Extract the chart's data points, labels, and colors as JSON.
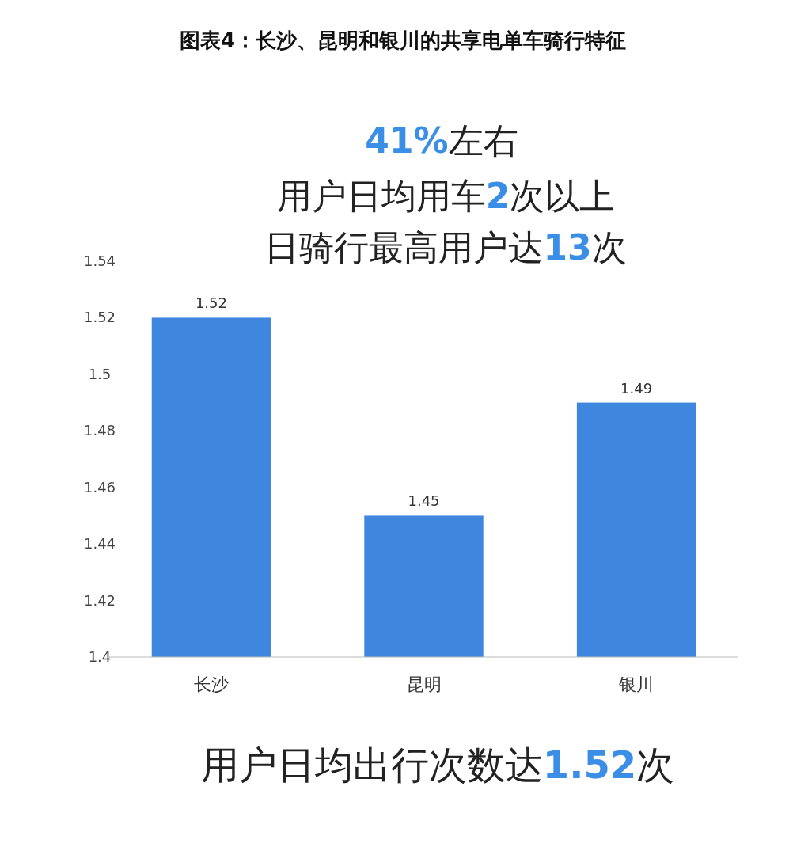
{
  "chart_data": {
    "type": "bar",
    "title": "图表4：长沙、昆明和银川的共享电单车骑行特征",
    "categories": [
      "长沙",
      "昆明",
      "银川"
    ],
    "values": [
      1.52,
      1.45,
      1.49
    ],
    "color": "#3f86de",
    "ylim": [
      1.4,
      1.54
    ],
    "yticks": [
      1.4,
      1.42,
      1.44,
      1.46,
      1.48,
      1.5,
      1.52,
      1.54
    ],
    "grid": false,
    "data_labels": true,
    "annotations": [
      "41%左右",
      "用户日均用车2次以上",
      "日骑行最高用户达13次",
      "用户日均出行次数达1.52次"
    ]
  }
}
